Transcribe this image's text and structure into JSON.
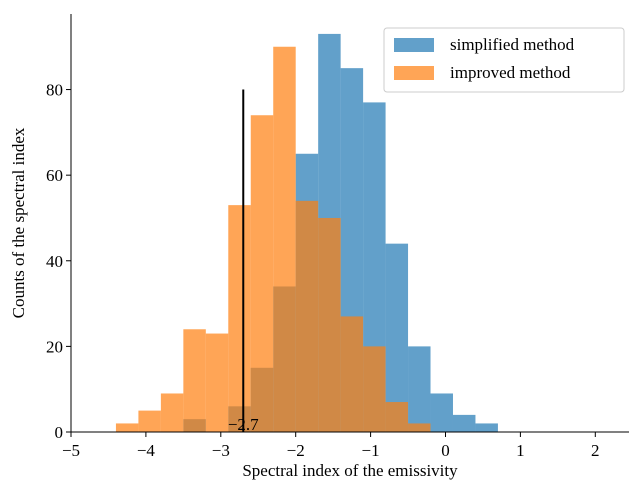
{
  "chart_data": {
    "type": "histogram",
    "xlabel": "Spectral index of the emissivity",
    "ylabel": "Counts of the spectral index",
    "xlim": [
      -5,
      2.45
    ],
    "ylim": [
      0,
      97.65
    ],
    "xticks": [
      {
        "value": -5,
        "label": "−5"
      },
      {
        "value": -4,
        "label": "−4"
      },
      {
        "value": -3,
        "label": "−3"
      },
      {
        "value": -2,
        "label": "−2"
      },
      {
        "value": -1,
        "label": "−1"
      },
      0,
      1,
      2
    ],
    "yticks": [
      0,
      20,
      40,
      60,
      80
    ],
    "legend": "upper right",
    "series": [
      {
        "name": "simplified method",
        "color": "#1f77b4",
        "bins": [
          -3.5,
          -3.2,
          -2.9,
          -2.6,
          -2.3,
          -2.0,
          -1.7,
          -1.4,
          -1.1,
          -0.8,
          -0.5,
          -0.2,
          0.1,
          0.4,
          0.7
        ],
        "values": [
          3,
          0,
          6,
          15,
          34,
          65,
          93,
          85,
          77,
          44,
          20,
          9,
          4,
          2
        ]
      },
      {
        "name": "improved method",
        "color": "#ff7f0e",
        "bins": [
          -4.4,
          -4.1,
          -3.8,
          -3.5,
          -3.2,
          -2.9,
          -2.6,
          -2.3,
          -2.0,
          -1.7,
          -1.4,
          -1.1,
          -0.8,
          -0.5,
          -0.2
        ],
        "values": [
          2,
          5,
          9,
          24,
          23,
          53,
          74,
          90,
          54,
          50,
          27,
          20,
          7,
          2
        ]
      }
    ],
    "vline": {
      "x": -2.7,
      "ymax": 80,
      "label": "−2.7"
    }
  }
}
